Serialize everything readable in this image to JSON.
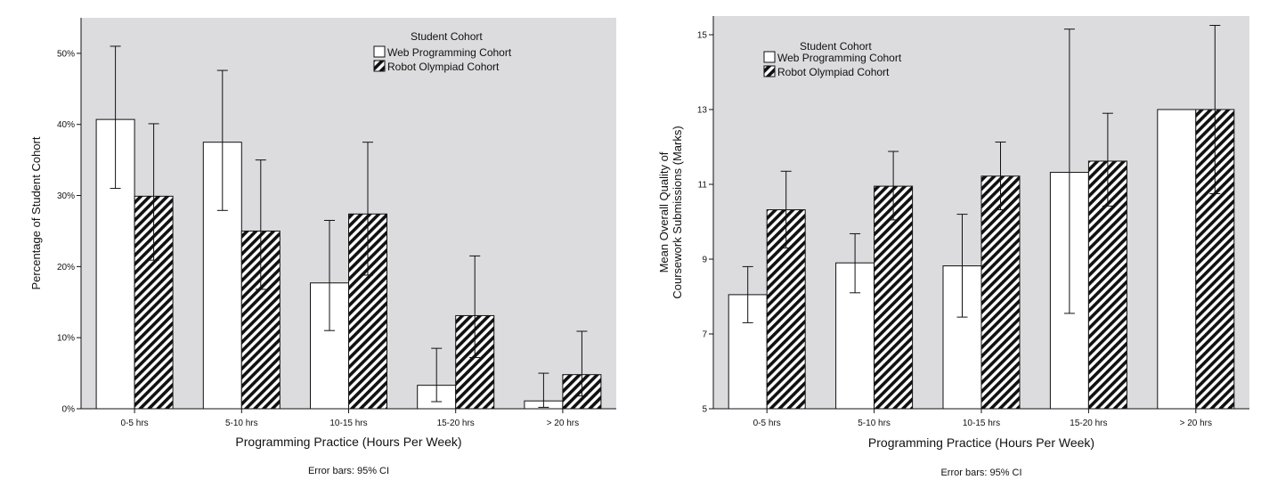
{
  "colors": {
    "plot_bg": "#dcdcde",
    "bar_web": "#ffffff",
    "bar_robot_hatch": "#111111",
    "axis": "#111111"
  },
  "chart_data": [
    {
      "type": "bar",
      "title": "",
      "xlabel": "Programming Practice (Hours Per Week)",
      "ylabel": "Percentage of Student Cohort",
      "note": "Error bars: 95% CI",
      "legend": {
        "title": "Student Cohort",
        "position": "top-right"
      },
      "categories": [
        "0-5 hrs",
        "5-10 hrs",
        "10-15 hrs",
        "15-20 hrs",
        "> 20 hrs"
      ],
      "ylim": [
        0,
        55
      ],
      "yticks": [
        0,
        10,
        20,
        30,
        40,
        50
      ],
      "ytick_labels": [
        "0%",
        "10%",
        "20%",
        "30%",
        "40%",
        "50%"
      ],
      "grid": false,
      "series": [
        {
          "name": "Web Programming Cohort",
          "pattern": "solid",
          "values": [
            40.7,
            37.5,
            17.7,
            3.3,
            1.1
          ],
          "ci_low": [
            31.0,
            27.9,
            11.0,
            1.0,
            0.2
          ],
          "ci_high": [
            51.0,
            47.6,
            26.5,
            8.5,
            5.0
          ]
        },
        {
          "name": "Robot Olympiad Cohort",
          "pattern": "hatched",
          "values": [
            29.9,
            25.0,
            27.4,
            13.1,
            4.8
          ],
          "ci_low": [
            20.9,
            16.8,
            18.8,
            7.2,
            1.8
          ],
          "ci_high": [
            40.1,
            35.0,
            37.5,
            21.5,
            10.9
          ]
        }
      ]
    },
    {
      "type": "bar",
      "title": "",
      "xlabel": "Programming Practice (Hours Per Week)",
      "ylabel": "Mean Overall Quality of Coursework Submissions (Marks)",
      "ylabel_lines": [
        "Mean Overall Quality of",
        "Coursework Submissions (Marks)"
      ],
      "note": "Error bars: 95% CI",
      "legend": {
        "title": "Student Cohort",
        "position": "top-left"
      },
      "categories": [
        "0-5 hrs",
        "5-10 hrs",
        "10-15 hrs",
        "15-20 hrs",
        "> 20 hrs"
      ],
      "ylim": [
        5,
        15.5
      ],
      "yticks": [
        5,
        7,
        9,
        11,
        13,
        15
      ],
      "ytick_labels": [
        "5",
        "7",
        "9",
        "11",
        "13",
        "15"
      ],
      "grid": false,
      "series": [
        {
          "name": "Web Programming Cohort",
          "pattern": "solid",
          "values": [
            8.05,
            8.9,
            8.82,
            11.32,
            13.0
          ],
          "ci_low": [
            7.3,
            8.1,
            7.45,
            7.55,
            null
          ],
          "ci_high": [
            8.8,
            9.68,
            10.2,
            15.15,
            null
          ]
        },
        {
          "name": "Robot Olympiad Cohort",
          "pattern": "hatched",
          "values": [
            10.32,
            10.95,
            11.22,
            11.62,
            13.0
          ],
          "ci_low": [
            9.3,
            10.05,
            10.32,
            10.42,
            10.75
          ],
          "ci_high": [
            11.35,
            11.88,
            12.13,
            12.9,
            15.25
          ]
        }
      ]
    }
  ]
}
